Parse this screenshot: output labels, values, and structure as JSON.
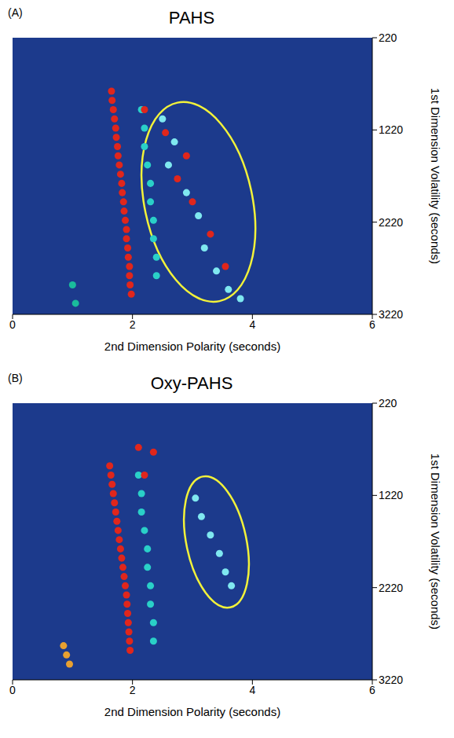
{
  "chart_data": [
    {
      "type": "scatter",
      "panel_label": "(A)",
      "title": "PAHS",
      "x_label": "2nd Dimension Polarity (seconds)",
      "y_label": "1st Dimension Volatility (seconds)",
      "xlim": [
        0,
        6
      ],
      "ylim": [
        220,
        3220
      ],
      "xticks": [
        0,
        2,
        4,
        6
      ],
      "yticks": [
        220,
        1220,
        2220,
        3220
      ],
      "marker": "circle",
      "grid": false,
      "highlight": {
        "x": [
          2.2,
          4.0
        ],
        "y": [
          900,
          3100
        ],
        "color": "#f2f23a"
      },
      "series": [
        {
          "color": "#e0261c",
          "x": [
            1.65,
            1.66,
            1.68,
            1.7,
            1.72,
            1.73,
            1.75,
            1.76,
            1.78,
            1.8,
            1.82,
            1.83,
            1.85,
            1.86,
            1.88,
            1.9,
            1.9,
            1.92,
            1.93,
            1.95,
            1.95,
            1.96,
            1.98
          ],
          "values": [
            800,
            900,
            1000,
            1100,
            1200,
            1300,
            1400,
            1500,
            1600,
            1700,
            1800,
            1900,
            2000,
            2100,
            2200,
            2300,
            2400,
            2500,
            2600,
            2700,
            2800,
            2900,
            3000
          ]
        },
        {
          "color": "#2ad0c8",
          "x": [
            2.15,
            2.2,
            2.2,
            2.25,
            2.3,
            2.3,
            2.35,
            2.35,
            2.4,
            2.4
          ],
          "values": [
            1000,
            1200,
            1400,
            1600,
            1800,
            2000,
            2200,
            2400,
            2600,
            2800
          ]
        },
        {
          "color": "#e0261c",
          "x": [
            2.2,
            2.55,
            2.9,
            2.75,
            3.0,
            3.3,
            3.55
          ],
          "values": [
            1000,
            1250,
            1500,
            1750,
            2000,
            2350,
            2700
          ]
        },
        {
          "color": "#7fe8f0",
          "x": [
            2.5,
            2.7,
            2.6,
            2.9,
            3.1,
            3.2,
            3.4,
            3.6,
            3.8
          ],
          "values": [
            1100,
            1350,
            1600,
            1900,
            2150,
            2500,
            2750,
            2950,
            3050
          ]
        },
        {
          "color": "#1abc9c",
          "x": [
            1.0,
            1.05
          ],
          "values": [
            2900,
            3100
          ]
        }
      ]
    },
    {
      "type": "scatter",
      "panel_label": "(B)",
      "title": "Oxy-PAHS",
      "x_label": "2nd Dimension Polarity (seconds)",
      "y_label": "1st Dimension Volatility (seconds)",
      "xlim": [
        0,
        6
      ],
      "ylim": [
        220,
        3220
      ],
      "xticks": [
        0,
        2,
        4,
        6
      ],
      "yticks": [
        220,
        1220,
        2220,
        3220
      ],
      "marker": "circle",
      "grid": false,
      "highlight": {
        "x": [
          2.9,
          3.9
        ],
        "y": [
          1000,
          2450
        ],
        "color": "#f2f23a"
      },
      "series": [
        {
          "color": "#e0261c",
          "x": [
            1.62,
            1.64,
            1.66,
            1.68,
            1.7,
            1.72,
            1.74,
            1.76,
            1.78,
            1.8,
            1.82,
            1.84,
            1.86,
            1.88,
            1.9,
            1.91,
            1.92,
            1.93,
            1.94,
            1.95,
            1.96
          ],
          "values": [
            900,
            1000,
            1100,
            1200,
            1300,
            1400,
            1500,
            1600,
            1700,
            1800,
            1900,
            2000,
            2100,
            2200,
            2300,
            2400,
            2500,
            2600,
            2700,
            2800,
            2900
          ]
        },
        {
          "color": "#2ad0c8",
          "x": [
            2.1,
            2.15,
            2.15,
            2.2,
            2.25,
            2.25,
            2.3,
            2.3,
            2.35,
            2.35
          ],
          "values": [
            1000,
            1200,
            1400,
            1600,
            1800,
            2000,
            2200,
            2400,
            2600,
            2800
          ]
        },
        {
          "color": "#e0261c",
          "x": [
            2.1,
            2.35,
            2.2
          ],
          "values": [
            700,
            750,
            1000
          ]
        },
        {
          "color": "#7fe8f0",
          "x": [
            3.05,
            3.15,
            3.3,
            3.45,
            3.55,
            3.65
          ],
          "values": [
            1250,
            1450,
            1650,
            1850,
            2050,
            2200
          ]
        },
        {
          "color": "#e8a030",
          "x": [
            0.85,
            0.9,
            0.95
          ],
          "values": [
            2850,
            2950,
            3050
          ]
        }
      ]
    }
  ]
}
